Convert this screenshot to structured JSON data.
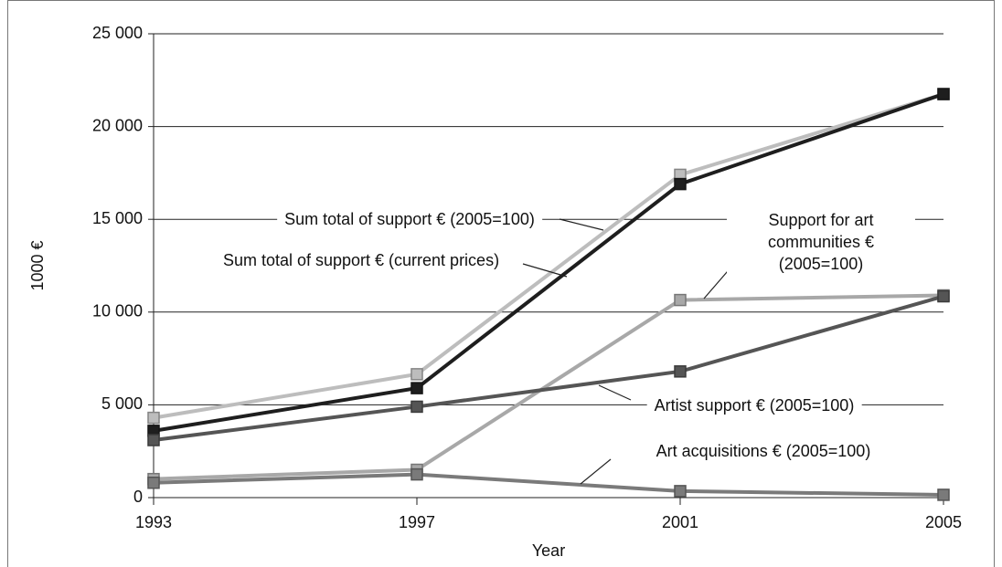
{
  "chart_data": {
    "type": "line",
    "x_label": "Year",
    "y_label": "1000 €",
    "x": [
      1993,
      1997,
      2001,
      2005
    ],
    "xlim": [
      1993,
      2005
    ],
    "xticks": [
      1993,
      1997,
      2001,
      2005
    ],
    "ylim": [
      0,
      25000
    ],
    "yticks": [
      0,
      {
        "value": 5000,
        "label": "5 000"
      },
      {
        "value": 10000,
        "label": "10 000"
      },
      {
        "value": 15000,
        "label": "15 000"
      },
      {
        "value": 20000,
        "label": "20 000"
      },
      {
        "value": 25000,
        "label": "25 000"
      }
    ],
    "grid": true,
    "series": [
      {
        "name": "Sum total of support € (2005=100)",
        "color": "#bdbdbd",
        "values": [
          4300,
          6650,
          17400,
          21750
        ]
      },
      {
        "name": "Sum total of support € (current prices)",
        "color": "#1e1e1e",
        "values": [
          3600,
          5900,
          16900,
          21750
        ]
      },
      {
        "name": "Support for art communities € (2005=100)",
        "color": "#a8a8a8",
        "values": [
          1000,
          1500,
          10650,
          10900
        ]
      },
      {
        "name": "Artist support € (2005=100)",
        "color": "#555555",
        "values": [
          3100,
          4900,
          6800,
          10850
        ]
      },
      {
        "name": "Art acquisitions € (2005=100)",
        "color": "#7a7a7a",
        "values": [
          800,
          1250,
          350,
          150
        ]
      }
    ]
  }
}
